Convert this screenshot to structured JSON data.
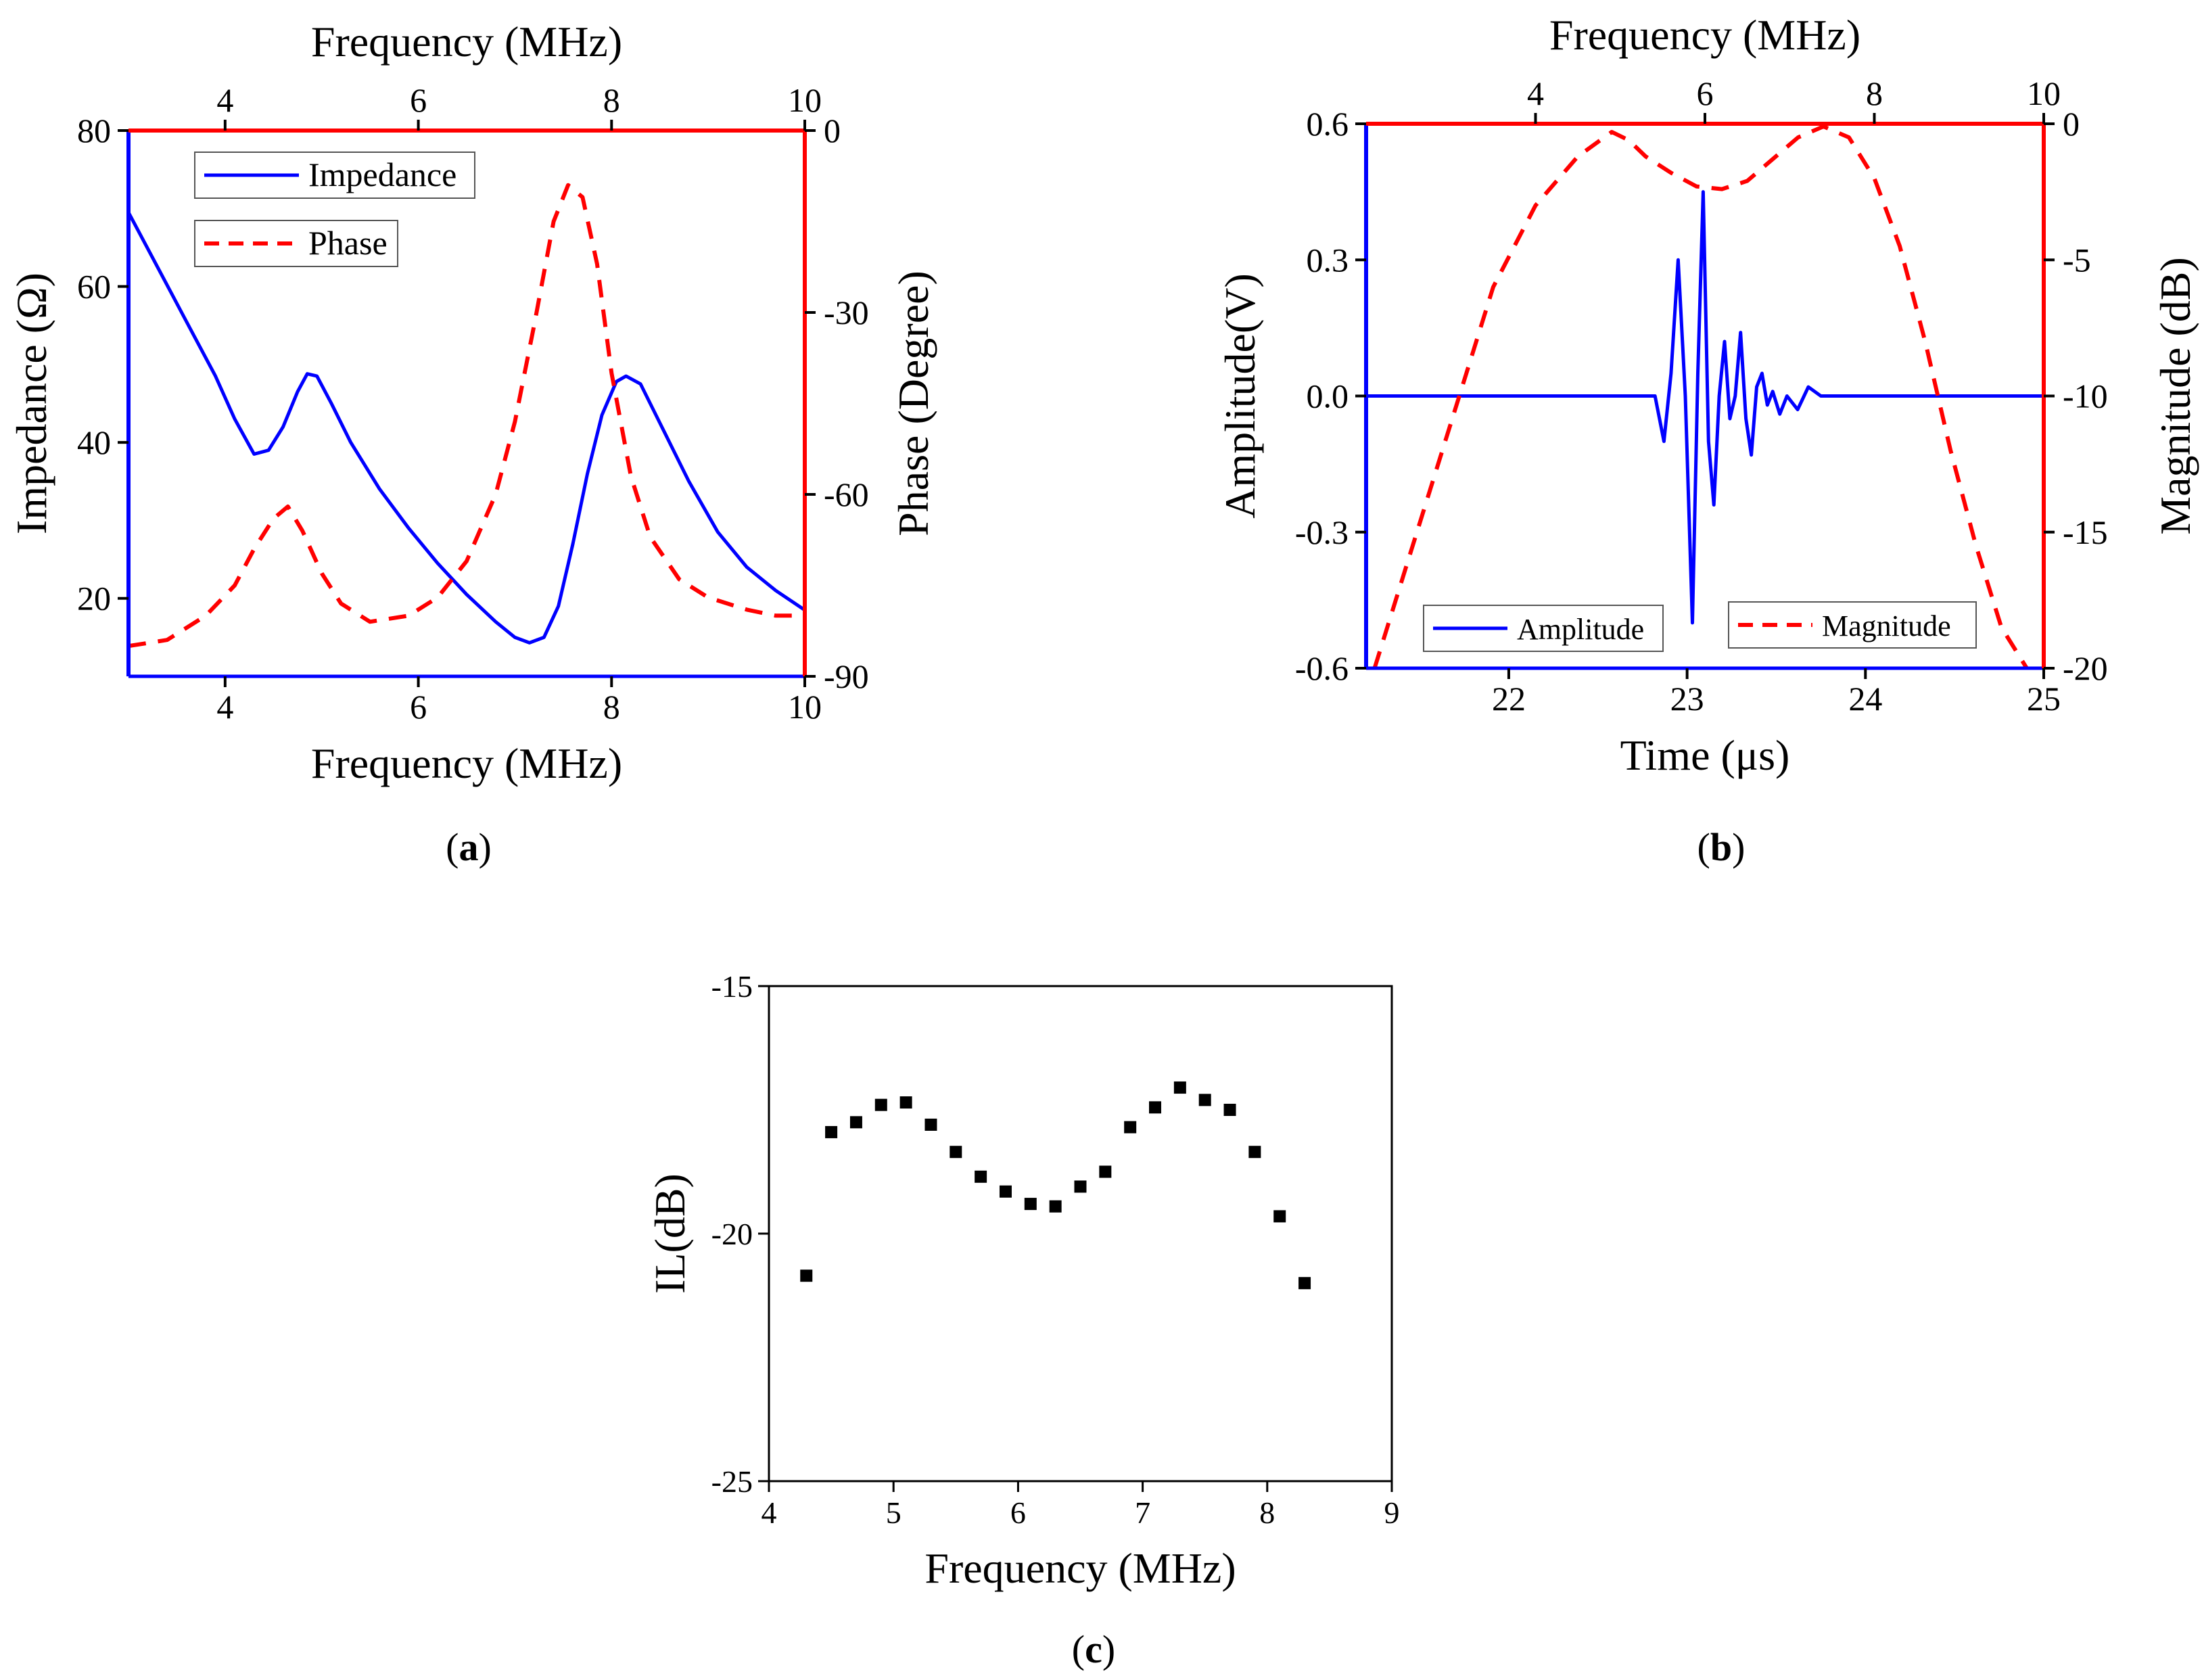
{
  "colors": {
    "blue": "#0000ff",
    "red": "#ff0000",
    "black": "#000000"
  },
  "chart_data": [
    {
      "panel": "a",
      "type": "line",
      "caption": "a",
      "xlabel": "Frequency (MHz)",
      "x2label": "Frequency (MHz)",
      "ylabel": "Impedance (Ω)",
      "y2label": "Phase (Degree)",
      "xlim": [
        3,
        10
      ],
      "x2lim": [
        3,
        10
      ],
      "ylim": [
        10,
        80
      ],
      "y2lim": [
        -90,
        0
      ],
      "xticks": [
        "4",
        "6",
        "8",
        "10"
      ],
      "xtick_values": [
        4,
        6,
        8,
        10
      ],
      "x2ticks": [
        "4",
        "6",
        "8",
        "10"
      ],
      "x2tick_values": [
        4,
        6,
        8,
        10
      ],
      "yticks": [
        "20",
        "40",
        "60",
        "80"
      ],
      "ytick_values": [
        20,
        40,
        60,
        80
      ],
      "y2ticks": [
        "0",
        "-30",
        "-60",
        "-90"
      ],
      "y2tick_values": [
        0,
        -30,
        -60,
        -90
      ],
      "legend_position": "top-left",
      "series": [
        {
          "name": "Impedance",
          "axis": "left",
          "color": "#0000ff",
          "style": "solid",
          "x": [
            3.0,
            3.3,
            3.6,
            3.9,
            4.1,
            4.3,
            4.45,
            4.6,
            4.75,
            4.85,
            4.95,
            5.1,
            5.3,
            5.6,
            5.9,
            6.2,
            6.5,
            6.8,
            7.0,
            7.15,
            7.3,
            7.45,
            7.6,
            7.75,
            7.9,
            8.05,
            8.15,
            8.3,
            8.5,
            8.8,
            9.1,
            9.4,
            9.7,
            10.0
          ],
          "y": [
            69.5,
            62.5,
            55.5,
            48.5,
            43.0,
            38.5,
            39.0,
            42.0,
            46.5,
            48.8,
            48.5,
            45.0,
            40.0,
            34.0,
            29.0,
            24.5,
            20.5,
            17.0,
            15.0,
            14.3,
            15.0,
            19.0,
            27.0,
            36.0,
            43.5,
            47.8,
            48.5,
            47.5,
            42.5,
            35.0,
            28.5,
            24.0,
            21.0,
            18.5
          ]
        },
        {
          "name": "Phase",
          "axis": "right",
          "color": "#ff0000",
          "style": "dashed",
          "x": [
            3.0,
            3.4,
            3.8,
            4.1,
            4.3,
            4.5,
            4.65,
            4.8,
            5.0,
            5.2,
            5.5,
            5.9,
            6.2,
            6.5,
            6.8,
            7.0,
            7.2,
            7.4,
            7.55,
            7.7,
            7.85,
            8.0,
            8.2,
            8.4,
            8.7,
            9.0,
            9.4,
            9.7,
            10.0
          ],
          "y": [
            -85,
            -84,
            -80,
            -75,
            -69,
            -64,
            -62,
            -66,
            -73,
            -78,
            -81,
            -80,
            -77,
            -71,
            -60,
            -48,
            -32,
            -15,
            -9,
            -11,
            -22,
            -40,
            -57,
            -67,
            -74,
            -77,
            -79,
            -80,
            -80
          ]
        }
      ]
    },
    {
      "panel": "b",
      "type": "line",
      "caption": "b",
      "xlabel": "Time (μs)",
      "x2label": "Frequency (MHz)",
      "ylabel": "Amplitude(V)",
      "y2label": "Magnitude (dB)",
      "xlim": [
        21.2,
        25.0
      ],
      "x2lim": [
        2.0,
        10.0
      ],
      "ylim": [
        -0.6,
        0.6
      ],
      "y2lim": [
        -20,
        0
      ],
      "xticks": [
        "22",
        "23",
        "24",
        "25"
      ],
      "xtick_values": [
        22,
        23,
        24,
        25
      ],
      "x2ticks": [
        "4",
        "6",
        "8",
        "10"
      ],
      "x2tick_values": [
        4,
        6,
        8,
        10
      ],
      "yticks": [
        "0.6",
        "0.3",
        "0.0",
        "-0.3",
        "-0.6"
      ],
      "ytick_values": [
        0.6,
        0.3,
        0.0,
        -0.3,
        -0.6
      ],
      "y2ticks": [
        "0",
        "-5",
        "-10",
        "-15",
        "-20"
      ],
      "y2tick_values": [
        0,
        -5,
        -10,
        -15,
        -20
      ],
      "legend_position": "bottom",
      "series": [
        {
          "name": "Amplitude",
          "axis": "left",
          "color": "#0000ff",
          "style": "solid",
          "x": [
            21.2,
            22.0,
            22.7,
            22.82,
            22.87,
            22.91,
            22.95,
            22.99,
            23.03,
            23.06,
            23.09,
            23.12,
            23.15,
            23.18,
            23.21,
            23.24,
            23.27,
            23.3,
            23.33,
            23.36,
            23.39,
            23.42,
            23.45,
            23.48,
            23.52,
            23.56,
            23.62,
            23.68,
            23.75,
            23.85,
            24.0,
            24.5,
            25.0
          ],
          "y": [
            0.0,
            0.0,
            0.0,
            0.0,
            -0.1,
            0.05,
            0.3,
            0.0,
            -0.5,
            0.05,
            0.45,
            -0.1,
            -0.24,
            0.0,
            0.12,
            -0.05,
            0.0,
            0.14,
            -0.05,
            -0.13,
            0.02,
            0.05,
            -0.02,
            0.01,
            -0.04,
            0.0,
            -0.03,
            0.02,
            0.0,
            0.0,
            0.0,
            0.0,
            0.0
          ]
        },
        {
          "name": "Magnitude",
          "axis": "right",
          "color": "#ff0000",
          "style": "dashed",
          "x": [
            2.1,
            2.5,
            3.0,
            3.5,
            4.0,
            4.5,
            4.9,
            5.1,
            5.3,
            5.6,
            5.9,
            6.2,
            6.5,
            6.8,
            7.1,
            7.4,
            7.7,
            8.0,
            8.3,
            8.6,
            8.9,
            9.2,
            9.5,
            9.8
          ],
          "y": [
            -20,
            -16,
            -11,
            -6,
            -3,
            -1.2,
            -0.3,
            -0.6,
            -1.2,
            -1.8,
            -2.3,
            -2.4,
            -2.1,
            -1.3,
            -0.5,
            -0.1,
            -0.5,
            -2.0,
            -4.5,
            -8.0,
            -12.0,
            -15.5,
            -18.5,
            -20
          ]
        }
      ]
    },
    {
      "panel": "c",
      "type": "scatter",
      "caption": "c",
      "xlabel": "Frequency (MHz)",
      "ylabel": "IL(dB)",
      "xlim": [
        4,
        9
      ],
      "ylim": [
        -25,
        -15
      ],
      "xticks": [
        "4",
        "5",
        "6",
        "7",
        "8",
        "9"
      ],
      "xtick_values": [
        4,
        5,
        6,
        7,
        8,
        9
      ],
      "yticks": [
        "-15",
        "-20",
        "-25"
      ],
      "ytick_values": [
        -15,
        -20,
        -25
      ],
      "series": [
        {
          "color": "#000000",
          "x": [
            4.3,
            4.5,
            4.7,
            4.9,
            5.1,
            5.3,
            5.5,
            5.7,
            5.9,
            6.1,
            6.3,
            6.5,
            6.7,
            6.9,
            7.1,
            7.3,
            7.5,
            7.7,
            7.9,
            8.1,
            8.3
          ],
          "y": [
            -20.85,
            -17.95,
            -17.75,
            -17.4,
            -17.35,
            -17.8,
            -18.35,
            -18.85,
            -19.15,
            -19.4,
            -19.45,
            -19.05,
            -18.75,
            -17.85,
            -17.45,
            -17.05,
            -17.3,
            -17.5,
            -18.35,
            -19.65,
            -21.0
          ]
        }
      ]
    }
  ]
}
